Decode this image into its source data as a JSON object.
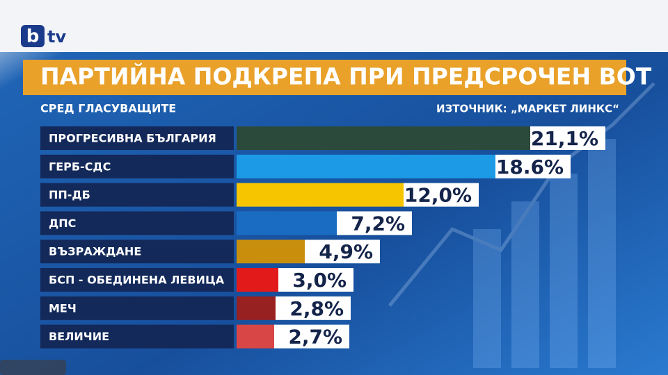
{
  "logo": {
    "b": "b",
    "tv": "tv"
  },
  "chart_data": {
    "type": "bar",
    "orientation": "horizontal",
    "title": "ПАРТИЙНА ПОДКРЕПА ПРИ ПРЕДСРОЧЕН ВОТ",
    "subtitle": "СРЕД ГЛАСУВАЩИТЕ",
    "source": "ИЗТОЧНИК: „МАРКЕТ ЛИНКС“",
    "categories": [
      "ПРОГРЕСИВНА БЪЛГАРИЯ",
      "ГЕРБ-СДС",
      "ПП-ДБ",
      "ДПС",
      "ВЪЗРАЖДАНЕ",
      "БСП - ОБЕДИНЕНА ЛЕВИЦА",
      "МЕЧ",
      "ВЕЛИЧИЕ"
    ],
    "values": [
      21.1,
      18.6,
      12.0,
      7.2,
      4.9,
      3.0,
      2.8,
      2.7
    ],
    "value_labels": [
      "21,1%",
      "18.6%",
      "12,0%",
      "7,2%",
      "4,9%",
      "3,0%",
      "2,8%",
      "2,7%"
    ],
    "colors": [
      "#2c4a3b",
      "#1c9ae6",
      "#f6c500",
      "#1a6cc2",
      "#c98f0c",
      "#e21a1a",
      "#972020",
      "#d94646"
    ]
  }
}
